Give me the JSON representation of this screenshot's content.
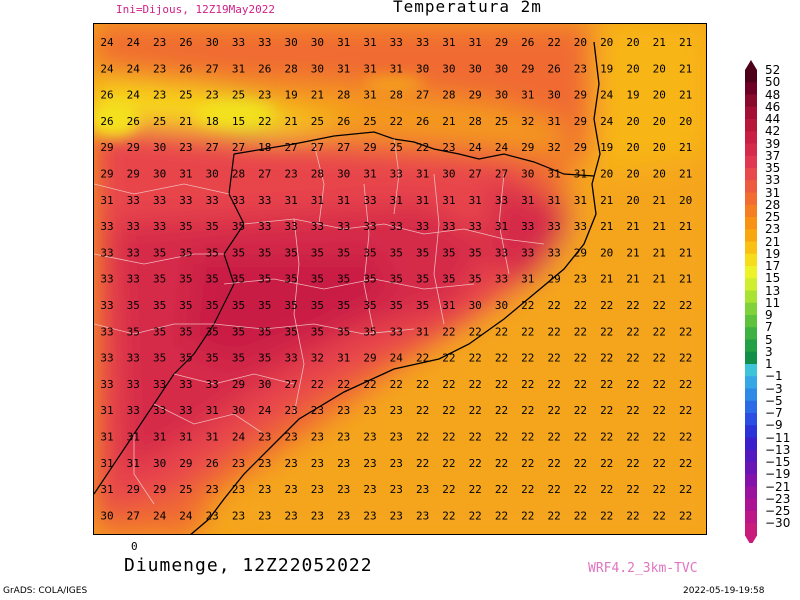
{
  "header": {
    "init_label": "Ini=Dijous, 12Z19May2022",
    "title": "Temperatura 2m"
  },
  "footer": {
    "axis_tick": "0",
    "valid_time": "Diumenge, 12Z22052022",
    "model": "WRF4.2_3km-TVC",
    "grads_credit": "GrADS: COLA/IGES",
    "timestamp": "2022-05-19-19:58"
  },
  "legend": {
    "labels": [
      "52",
      "50",
      "48",
      "46",
      "44",
      "42",
      "39",
      "37",
      "35",
      "33",
      "31",
      "28",
      "25",
      "23",
      "21",
      "19",
      "17",
      "15",
      "13",
      "11",
      "9",
      "7",
      "5",
      "3",
      "1",
      "−1",
      "−3",
      "−5",
      "−7",
      "−9",
      "−11",
      "−13",
      "−15",
      "−19",
      "−21",
      "−23",
      "−25",
      "−30"
    ],
    "colors": [
      "#4d0019",
      "#6d0024",
      "#8a0a2e",
      "#a30f35",
      "#b8173c",
      "#c91f44",
      "#d62a4a",
      "#e03850",
      "#e84a4c",
      "#ee5a40",
      "#f26b30",
      "#f57d22",
      "#f79215",
      "#f8a70f",
      "#f9c113",
      "#f7dc1a",
      "#eef229",
      "#cfee2f",
      "#a8e233",
      "#80d23a",
      "#5ec23e",
      "#3eb142",
      "#239f45",
      "#118e48",
      "#3ec4d8",
      "#34a7e4",
      "#2f89e6",
      "#2b6be6",
      "#2a4de2",
      "#2b33d8",
      "#3b1fcb",
      "#5318c0",
      "#6b14b5",
      "#8412aa",
      "#9a129e",
      "#ad1292",
      "#bd1687",
      "#c81b7c"
    ]
  },
  "map": {
    "value_rows": [
      {
        "values": [
          "24",
          "24",
          "23",
          "26",
          "30",
          "33",
          "33",
          "30",
          "30",
          "31",
          "31",
          "33",
          "33",
          "31",
          "31",
          "29",
          "26",
          "22",
          "20",
          "20",
          "20",
          "21",
          "21"
        ]
      },
      {
        "values": [
          "24",
          "24",
          "23",
          "26",
          "27",
          "31",
          "26",
          "28",
          "30",
          "31",
          "31",
          "31",
          "30",
          "30",
          "30",
          "30",
          "29",
          "26",
          "23",
          "19",
          "20",
          "20",
          "21"
        ]
      },
      {
        "values": [
          "26",
          "24",
          "23",
          "25",
          "23",
          "25",
          "23",
          "19",
          "21",
          "28",
          "31",
          "28",
          "27",
          "28",
          "29",
          "30",
          "31",
          "30",
          "29",
          "24",
          "19",
          "20",
          "21"
        ]
      },
      {
        "values": [
          "26",
          "26",
          "25",
          "21",
          "18",
          "15",
          "22",
          "21",
          "25",
          "26",
          "25",
          "22",
          "26",
          "21",
          "28",
          "25",
          "32",
          "31",
          "29",
          "24",
          "20",
          "20",
          "20"
        ]
      },
      {
        "values": [
          "29",
          "29",
          "30",
          "23",
          "27",
          "27",
          "18",
          "27",
          "27",
          "27",
          "29",
          "25",
          "22",
          "23",
          "24",
          "24",
          "29",
          "32",
          "29",
          "19",
          "20",
          "20",
          "21"
        ]
      },
      {
        "values": [
          "29",
          "29",
          "30",
          "31",
          "30",
          "28",
          "27",
          "23",
          "28",
          "30",
          "31",
          "33",
          "31",
          "30",
          "27",
          "27",
          "30",
          "31",
          "31",
          "20",
          "20",
          "20",
          "21"
        ]
      },
      {
        "values": [
          "31",
          "33",
          "33",
          "33",
          "33",
          "33",
          "33",
          "31",
          "31",
          "31",
          "33",
          "31",
          "31",
          "31",
          "31",
          "33",
          "31",
          "31",
          "31",
          "21",
          "20",
          "21",
          "20"
        ]
      },
      {
        "values": [
          "33",
          "33",
          "33",
          "35",
          "35",
          "35",
          "33",
          "33",
          "33",
          "33",
          "33",
          "33",
          "33",
          "33",
          "33",
          "31",
          "33",
          "33",
          "33",
          "21",
          "21",
          "21",
          "21"
        ]
      },
      {
        "values": [
          "33",
          "33",
          "35",
          "35",
          "35",
          "35",
          "35",
          "35",
          "35",
          "35",
          "35",
          "35",
          "35",
          "35",
          "35",
          "33",
          "33",
          "33",
          "29",
          "20",
          "21",
          "21",
          "21"
        ]
      },
      {
        "values": [
          "33",
          "33",
          "35",
          "35",
          "35",
          "35",
          "35",
          "35",
          "35",
          "35",
          "35",
          "35",
          "35",
          "35",
          "35",
          "33",
          "31",
          "29",
          "23",
          "21",
          "21",
          "21",
          "21"
        ]
      },
      {
        "values": [
          "33",
          "35",
          "35",
          "35",
          "35",
          "35",
          "35",
          "35",
          "35",
          "35",
          "35",
          "35",
          "35",
          "31",
          "30",
          "30",
          "22",
          "22",
          "22",
          "22",
          "22",
          "22",
          "22"
        ]
      },
      {
        "values": [
          "33",
          "35",
          "35",
          "35",
          "35",
          "35",
          "35",
          "35",
          "35",
          "35",
          "35",
          "33",
          "31",
          "22",
          "22",
          "22",
          "22",
          "22",
          "22",
          "22",
          "22",
          "22",
          "22"
        ]
      },
      {
        "values": [
          "33",
          "33",
          "35",
          "35",
          "35",
          "35",
          "35",
          "33",
          "32",
          "31",
          "29",
          "24",
          "22",
          "22",
          "22",
          "22",
          "22",
          "22",
          "22",
          "22",
          "22",
          "22",
          "22"
        ]
      },
      {
        "values": [
          "33",
          "33",
          "33",
          "33",
          "33",
          "29",
          "30",
          "27",
          "22",
          "22",
          "22",
          "22",
          "22",
          "22",
          "22",
          "22",
          "22",
          "22",
          "22",
          "22",
          "22",
          "22",
          "22"
        ]
      },
      {
        "values": [
          "31",
          "33",
          "33",
          "33",
          "31",
          "30",
          "24",
          "23",
          "23",
          "23",
          "23",
          "23",
          "22",
          "22",
          "22",
          "22",
          "22",
          "22",
          "22",
          "22",
          "22",
          "22",
          "22"
        ]
      },
      {
        "values": [
          "31",
          "31",
          "31",
          "31",
          "31",
          "24",
          "23",
          "23",
          "23",
          "23",
          "23",
          "23",
          "22",
          "22",
          "22",
          "22",
          "22",
          "22",
          "22",
          "22",
          "22",
          "22",
          "22"
        ]
      },
      {
        "values": [
          "31",
          "31",
          "30",
          "29",
          "26",
          "23",
          "23",
          "23",
          "23",
          "23",
          "23",
          "23",
          "22",
          "22",
          "22",
          "22",
          "22",
          "22",
          "22",
          "22",
          "22",
          "22",
          "22"
        ]
      },
      {
        "values": [
          "31",
          "29",
          "29",
          "25",
          "23",
          "23",
          "23",
          "23",
          "23",
          "23",
          "23",
          "23",
          "23",
          "22",
          "22",
          "22",
          "22",
          "22",
          "22",
          "22",
          "22",
          "22",
          "22"
        ]
      },
      {
        "values": [
          "30",
          "27",
          "24",
          "24",
          "23",
          "23",
          "23",
          "23",
          "23",
          "23",
          "23",
          "23",
          "23",
          "22",
          "22",
          "22",
          "22",
          "22",
          "22",
          "22",
          "22",
          "22",
          "22"
        ]
      }
    ]
  }
}
